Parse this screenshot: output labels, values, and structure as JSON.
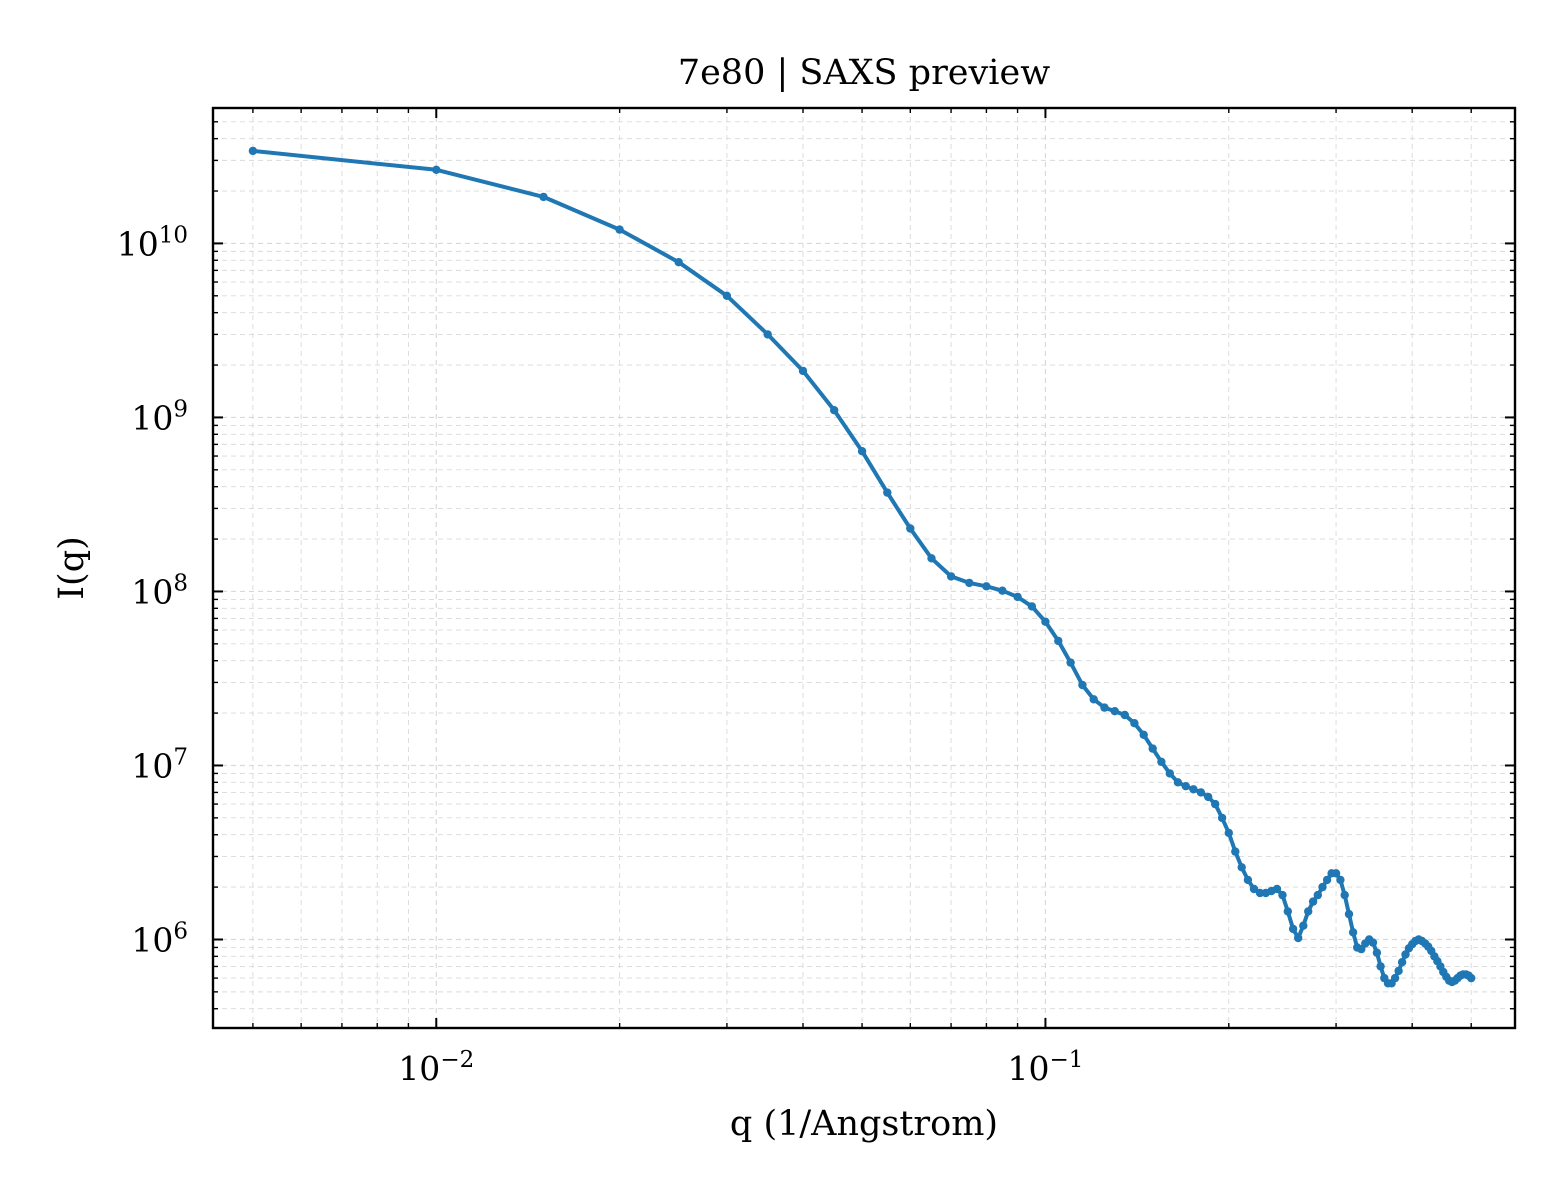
{
  "chart_data": {
    "type": "line",
    "title": "7e80 | SAXS preview",
    "xlabel": "q (1/Angstrom)",
    "ylabel": "I(q)",
    "x_scale": "log",
    "y_scale": "log",
    "xlim": [
      0.0043,
      0.59
    ],
    "ylim": [
      310000,
      60000000000
    ],
    "x_major_ticks": [
      {
        "value": 0.01,
        "base": "10",
        "exp": "−2"
      },
      {
        "value": 0.1,
        "base": "10",
        "exp": "−1"
      }
    ],
    "y_major_ticks": [
      {
        "value": 1000000,
        "base": "10",
        "exp": "6"
      },
      {
        "value": 10000000,
        "base": "10",
        "exp": "7"
      },
      {
        "value": 100000000,
        "base": "10",
        "exp": "8"
      },
      {
        "value": 1000000000,
        "base": "10",
        "exp": "9"
      },
      {
        "value": 10000000000,
        "base": "10",
        "exp": "10"
      }
    ],
    "grid": true,
    "colors": {
      "line": "#1f77b4",
      "grid": "#d9d9d9",
      "axes": "#000000"
    },
    "series": [
      {
        "x": [
          0.005,
          0.01,
          0.015,
          0.02,
          0.025,
          0.03,
          0.035,
          0.04,
          0.045,
          0.05,
          0.055,
          0.06,
          0.065,
          0.07,
          0.075,
          0.08,
          0.085,
          0.09,
          0.095,
          0.1,
          0.105,
          0.11,
          0.115,
          0.12,
          0.125,
          0.13,
          0.135,
          0.14,
          0.145,
          0.15,
          0.155,
          0.16,
          0.165,
          0.17,
          0.175,
          0.18,
          0.185,
          0.19,
          0.195,
          0.2,
          0.205,
          0.21,
          0.215,
          0.22,
          0.225,
          0.23,
          0.235,
          0.24,
          0.245,
          0.25,
          0.255,
          0.26,
          0.265,
          0.27,
          0.275,
          0.28,
          0.285,
          0.29,
          0.295,
          0.3,
          0.305,
          0.31,
          0.315,
          0.32,
          0.325,
          0.33,
          0.335,
          0.34,
          0.345,
          0.35,
          0.355,
          0.36,
          0.365,
          0.37,
          0.375,
          0.38,
          0.385,
          0.39,
          0.395,
          0.4,
          0.405,
          0.41,
          0.415,
          0.42,
          0.425,
          0.43,
          0.435,
          0.44,
          0.445,
          0.45,
          0.455,
          0.46,
          0.465,
          0.47,
          0.475,
          0.48,
          0.485,
          0.49,
          0.495,
          0.5
        ],
        "y": [
          34000000000,
          26500000000,
          18500000000,
          12000000000,
          7800000000,
          5000000000,
          3000000000,
          1850000000,
          1100000000,
          640000000,
          370000000,
          230000000,
          155000000,
          122000000,
          112000000,
          107000000,
          101000000,
          93000000,
          82000000,
          67000000,
          52000000,
          39000000,
          29000000,
          24000000,
          21500000,
          20500000,
          19500000,
          17500000,
          15000000,
          12500000,
          10500000,
          9000000,
          8000000,
          7600000,
          7300000,
          7000000,
          6600000,
          6000000,
          5000000,
          4100000,
          3200000,
          2600000,
          2200000,
          1950000,
          1850000,
          1850000,
          1900000,
          1950000,
          1800000,
          1450000,
          1150000,
          1020000,
          1200000,
          1450000,
          1650000,
          1800000,
          2000000,
          2200000,
          2400000,
          2400000,
          2200000,
          1800000,
          1400000,
          1100000,
          900000,
          880000,
          950000,
          1000000,
          960000,
          840000,
          700000,
          600000,
          560000,
          560000,
          600000,
          660000,
          740000,
          820000,
          890000,
          940000,
          980000,
          1000000,
          980000,
          950000,
          910000,
          860000,
          800000,
          750000,
          700000,
          650000,
          610000,
          580000,
          570000,
          580000,
          600000,
          620000,
          630000,
          630000,
          620000,
          600000
        ]
      }
    ]
  }
}
